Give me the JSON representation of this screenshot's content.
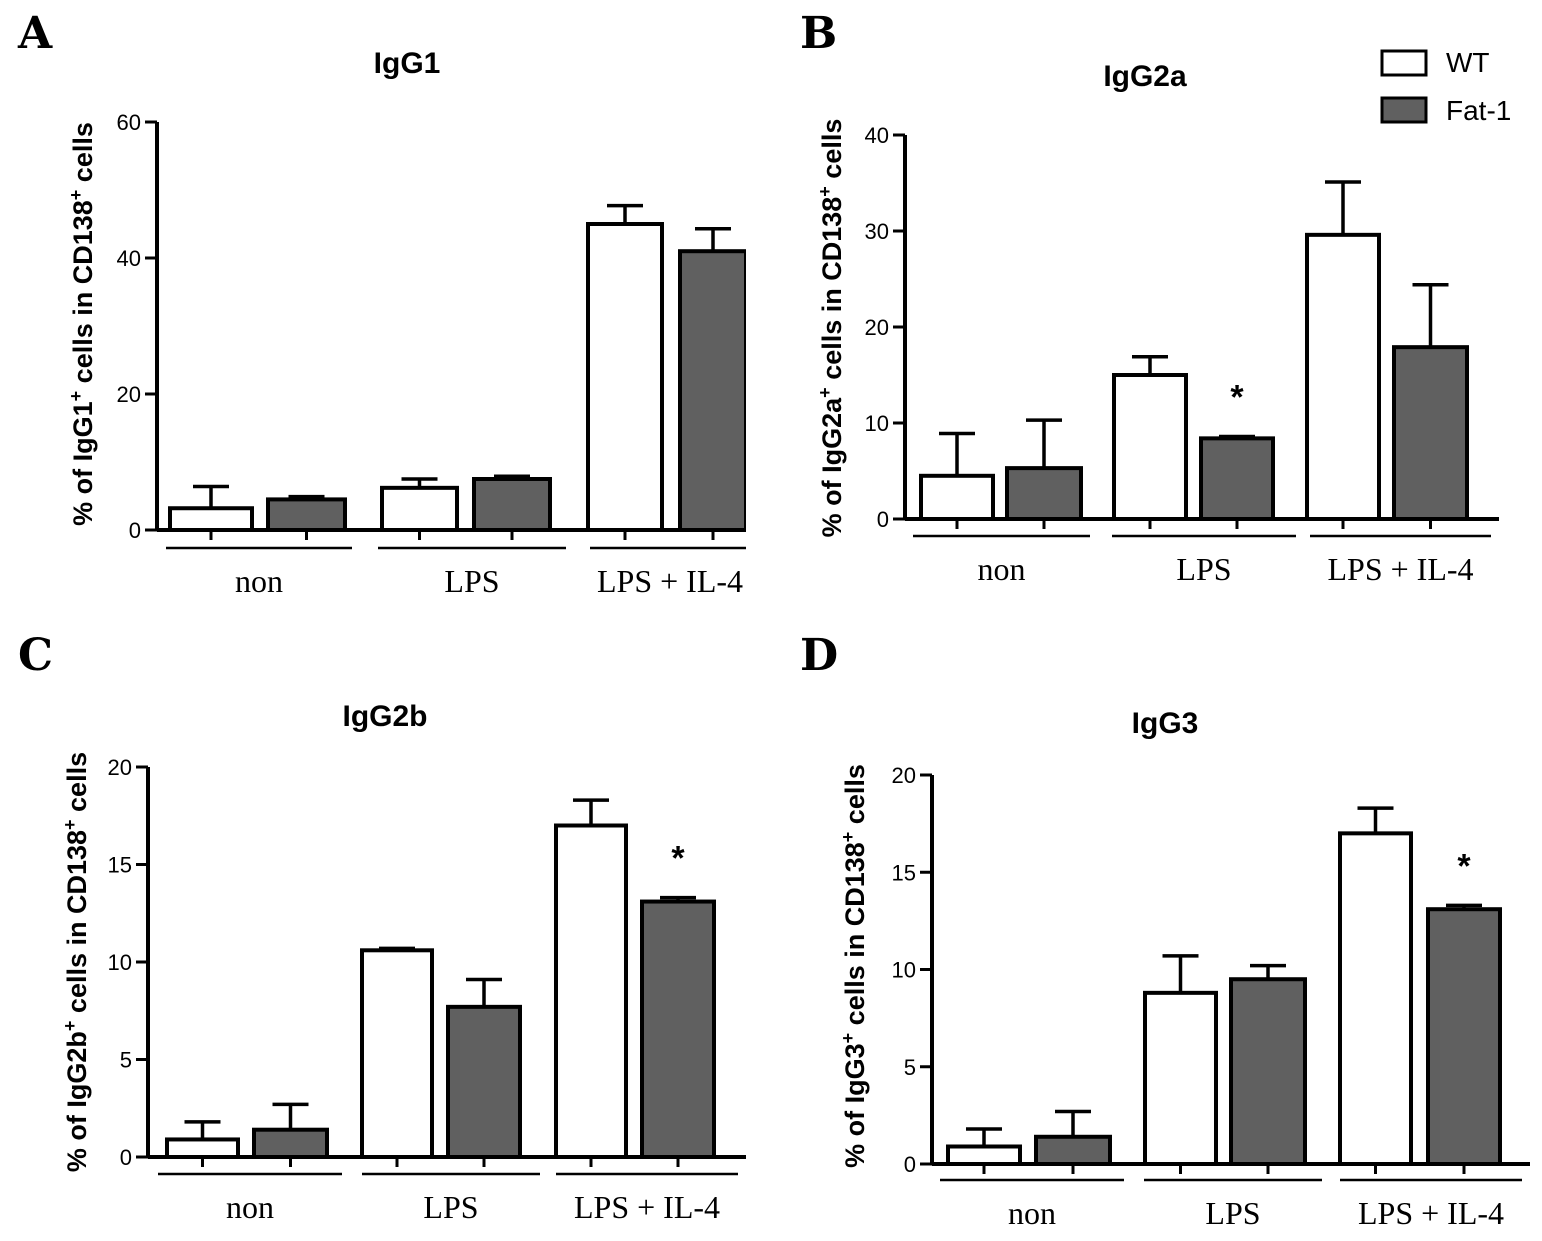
{
  "colors": {
    "WT": "#ffffff",
    "Fat-1": "#606060",
    "stroke": "#000000"
  },
  "legend": [
    {
      "label": "WT",
      "color": "#ffffff"
    },
    {
      "label": "Fat-1",
      "color": "#606060"
    }
  ],
  "chart_data": [
    {
      "panel": "A",
      "type": "bar",
      "title": "IgG1",
      "ylabel": "% of IgG1+ cells in CD138+ cells",
      "ylim": [
        0,
        60
      ],
      "yticks": [
        0,
        20,
        40,
        60
      ],
      "categories": [
        "non",
        "LPS",
        "LPS + IL-4"
      ],
      "series": [
        {
          "name": "WT",
          "values": [
            3.2,
            6.2,
            45
          ],
          "errors": [
            3.2,
            1.3,
            2.7
          ]
        },
        {
          "name": "Fat-1",
          "values": [
            4.5,
            7.5,
            41
          ],
          "errors": [
            0.4,
            0.4,
            3.3
          ]
        }
      ],
      "significance": []
    },
    {
      "panel": "B",
      "type": "bar",
      "title": "IgG2a",
      "ylabel": "% of IgG2a+ cells in CD138+ cells",
      "ylim": [
        0,
        40
      ],
      "yticks": [
        0,
        10,
        20,
        30,
        40
      ],
      "categories": [
        "non",
        "LPS",
        "LPS + IL-4"
      ],
      "series": [
        {
          "name": "WT",
          "values": [
            4.5,
            15,
            29.6
          ],
          "errors": [
            4.4,
            1.9,
            5.5
          ]
        },
        {
          "name": "Fat-1",
          "values": [
            5.3,
            8.4,
            17.9
          ],
          "errors": [
            5.0,
            0.2,
            6.5
          ]
        }
      ],
      "significance": [
        {
          "category": 1,
          "series": 1,
          "label": "*"
        }
      ]
    },
    {
      "panel": "C",
      "type": "bar",
      "title": "IgG2b",
      "ylabel": "% of IgG2b+ cells in CD138+ cells",
      "ylim": [
        0,
        20
      ],
      "yticks": [
        0,
        5,
        10,
        15,
        20
      ],
      "categories": [
        "non",
        "LPS",
        "LPS + IL-4"
      ],
      "series": [
        {
          "name": "WT",
          "values": [
            0.9,
            10.6,
            17
          ],
          "errors": [
            0.9,
            0.1,
            1.3
          ]
        },
        {
          "name": "Fat-1",
          "values": [
            1.4,
            7.7,
            13.1
          ],
          "errors": [
            1.3,
            1.4,
            0.2
          ]
        }
      ],
      "significance": [
        {
          "category": 2,
          "series": 1,
          "label": "*"
        }
      ]
    },
    {
      "panel": "D",
      "type": "bar",
      "title": "IgG3",
      "ylabel": "% of IgG3+ cells in CD138+ cells",
      "ylim": [
        0,
        20
      ],
      "yticks": [
        0,
        5,
        10,
        15,
        20
      ],
      "categories": [
        "non",
        "LPS",
        "LPS + IL-4"
      ],
      "series": [
        {
          "name": "WT",
          "values": [
            0.9,
            8.8,
            17
          ],
          "errors": [
            0.9,
            1.9,
            1.3
          ]
        },
        {
          "name": "Fat-1",
          "values": [
            1.4,
            9.5,
            13.1
          ],
          "errors": [
            1.3,
            0.7,
            0.2
          ]
        }
      ],
      "significance": [
        {
          "category": 2,
          "series": 1,
          "label": "*"
        }
      ]
    }
  ]
}
